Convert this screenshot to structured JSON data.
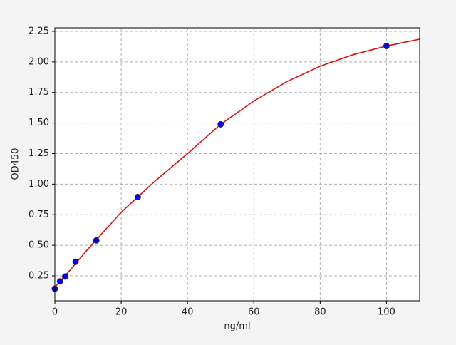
{
  "chart_data": {
    "type": "scatter",
    "xlabel": "ng/ml",
    "ylabel": "OD450",
    "xlim": [
      0,
      110
    ],
    "ylim": [
      0.046,
      2.279
    ],
    "xticks": [
      0,
      20,
      40,
      60,
      80,
      100
    ],
    "yticks": [
      0.25,
      {
        "value": 0.5,
        "label": "0.50"
      },
      0.75,
      {
        "value": 1,
        "label": "1.00"
      },
      1.25,
      {
        "value": 1.5,
        "label": "1.50"
      },
      1.75,
      {
        "value": 2,
        "label": "2.00"
      },
      2.25
    ],
    "grid": true,
    "series": [
      {
        "mode": "markers",
        "color": "#0000ee",
        "x": [
          0,
          1.56,
          3.125,
          6.25,
          12.5,
          25,
          50,
          100
        ],
        "values": [
          0.145,
          0.205,
          0.245,
          0.365,
          0.54,
          0.895,
          1.49,
          2.13
        ]
      },
      {
        "mode": "line",
        "color": "#dd1111",
        "x": [
          0,
          5,
          10,
          20,
          25,
          30,
          40,
          50,
          60,
          70,
          80,
          90,
          100,
          110
        ],
        "values": [
          0.157,
          0.31,
          0.47,
          0.77,
          0.895,
          1.02,
          1.25,
          1.49,
          1.68,
          1.84,
          1.965,
          2.06,
          2.13,
          2.186
        ]
      }
    ]
  }
}
